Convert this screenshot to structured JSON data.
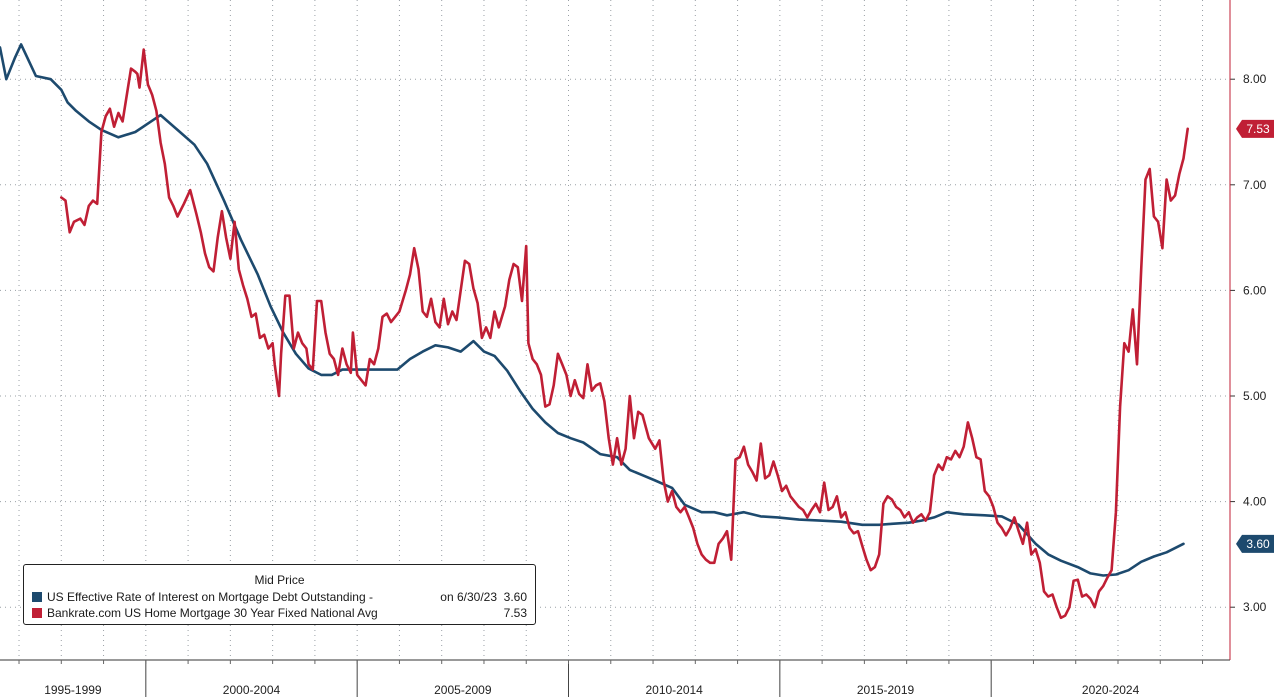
{
  "colors": {
    "effective": "#1d4a6e",
    "bankrate": "#c01f35",
    "grid": "#9aa0a6",
    "axis": "#333333"
  },
  "legend": {
    "title": "Mid Price",
    "items": [
      {
        "label": "US Effective Rate of Interest on Mortgage Debt Outstanding -",
        "date": "on 6/30/23",
        "value": "3.60"
      },
      {
        "label": "Bankrate.com US Home Mortgage 30 Year Fixed National Avg",
        "date": "",
        "value": "7.53"
      }
    ]
  },
  "chart_data": {
    "type": "line",
    "xlim": [
      1995.0,
      2024.1
    ],
    "ylim": [
      2.5,
      8.75
    ],
    "yticks": [
      "3.00",
      "4.00",
      "5.00",
      "6.00",
      "7.00",
      "8.00"
    ],
    "x_periods": [
      {
        "label": "1995-1999",
        "start": 1995.0,
        "end": 1998.45
      },
      {
        "label": "2000-2004",
        "start": 1998.45,
        "end": 2003.45
      },
      {
        "label": "2005-2009",
        "start": 2003.45,
        "end": 2008.45
      },
      {
        "label": "2010-2014",
        "start": 2008.45,
        "end": 2013.45
      },
      {
        "label": "2015-2019",
        "start": 2013.45,
        "end": 2018.45
      },
      {
        "label": "2020-2024",
        "start": 2018.45,
        "end": 2024.1
      }
    ],
    "last_value_labels": [
      {
        "series": "effective",
        "text": "3.60"
      },
      {
        "series": "bankrate",
        "text": "7.53"
      }
    ],
    "series": [
      {
        "key": "effective",
        "name": "US Effective Rate of Interest on Mortgage Debt Outstanding",
        "x": [
          1995.0,
          1995.15,
          1995.35,
          1995.5,
          1995.65,
          1995.85,
          1996.2,
          1996.45,
          1996.6,
          1996.8,
          1997.1,
          1997.4,
          1997.8,
          1998.2,
          1998.5,
          1998.8,
          1999.2,
          1999.6,
          1999.9,
          2000.3,
          2000.7,
          2001.1,
          2001.4,
          2001.7,
          2002.0,
          2002.3,
          2002.6,
          2002.85,
          2003.1,
          2003.5,
          2003.9,
          2004.4,
          2004.7,
          2005.0,
          2005.3,
          2005.6,
          2005.9,
          2006.2,
          2006.45,
          2006.7,
          2007.0,
          2007.3,
          2007.6,
          2007.9,
          2008.2,
          2008.5,
          2008.8,
          2009.2,
          2009.6,
          2009.9,
          2010.2,
          2010.5,
          2010.9,
          2011.2,
          2011.6,
          2011.9,
          2012.2,
          2012.6,
          2013.0,
          2013.4,
          2013.9,
          2014.4,
          2014.9,
          2015.4,
          2015.8,
          2016.1,
          2016.5,
          2016.8,
          2017.1,
          2017.4,
          2017.8,
          2018.3,
          2018.7,
          2019.1,
          2019.5,
          2019.8,
          2020.1,
          2020.5,
          2020.8,
          2021.1,
          2021.4,
          2021.7,
          2022.0,
          2022.3,
          2022.6,
          2023.0
        ],
        "y": [
          8.3,
          8.0,
          8.2,
          8.33,
          8.2,
          8.03,
          8.0,
          7.9,
          7.78,
          7.7,
          7.6,
          7.52,
          7.45,
          7.5,
          7.58,
          7.66,
          7.52,
          7.38,
          7.2,
          6.85,
          6.48,
          6.15,
          5.85,
          5.6,
          5.4,
          5.26,
          5.2,
          5.2,
          5.25,
          5.25,
          5.25,
          5.25,
          5.35,
          5.42,
          5.48,
          5.46,
          5.42,
          5.52,
          5.42,
          5.38,
          5.24,
          5.05,
          4.88,
          4.75,
          4.65,
          4.6,
          4.56,
          4.45,
          4.42,
          4.3,
          4.25,
          4.2,
          4.13,
          3.97,
          3.9,
          3.9,
          3.87,
          3.9,
          3.86,
          3.85,
          3.83,
          3.82,
          3.81,
          3.78,
          3.78,
          3.79,
          3.8,
          3.82,
          3.85,
          3.9,
          3.88,
          3.87,
          3.86,
          3.78,
          3.6,
          3.5,
          3.44,
          3.38,
          3.32,
          3.3,
          3.31,
          3.35,
          3.43,
          3.48,
          3.52,
          3.6
        ]
      },
      {
        "key": "bankrate",
        "name": "Bankrate.com US Home Mortgage 30 Year Fixed National Avg",
        "x": [
          1996.45,
          1996.55,
          1996.65,
          1996.75,
          1996.9,
          1997.0,
          1997.1,
          1997.2,
          1997.3,
          1997.4,
          1997.5,
          1997.6,
          1997.7,
          1997.8,
          1997.9,
          1998.0,
          1998.1,
          1998.2,
          1998.25,
          1998.3,
          1998.4,
          1998.5,
          1998.55,
          1998.6,
          1998.7,
          1998.8,
          1998.9,
          1999.0,
          1999.1,
          1999.2,
          1999.35,
          1999.5,
          1999.65,
          1999.75,
          1999.85,
          1999.95,
          2000.05,
          2000.15,
          2000.25,
          2000.35,
          2000.45,
          2000.55,
          2000.65,
          2000.75,
          2000.85,
          2000.95,
          2001.05,
          2001.15,
          2001.25,
          2001.35,
          2001.45,
          2001.5,
          2001.6,
          2001.65,
          2001.75,
          2001.85,
          2001.95,
          2002.05,
          2002.15,
          2002.25,
          2002.3,
          2002.4,
          2002.5,
          2002.6,
          2002.7,
          2002.8,
          2002.9,
          2003.0,
          2003.1,
          2003.2,
          2003.3,
          2003.35,
          2003.45,
          2003.55,
          2003.65,
          2003.75,
          2003.85,
          2003.95,
          2004.05,
          2004.15,
          2004.25,
          2004.35,
          2004.45,
          2004.6,
          2004.7,
          2004.8,
          2004.9,
          2005.0,
          2005.1,
          2005.2,
          2005.3,
          2005.4,
          2005.5,
          2005.6,
          2005.7,
          2005.8,
          2005.9,
          2006.0,
          2006.1,
          2006.2,
          2006.3,
          2006.4,
          2006.5,
          2006.6,
          2006.7,
          2006.8,
          2006.95,
          2007.05,
          2007.15,
          2007.25,
          2007.35,
          2007.45,
          2007.5,
          2007.6,
          2007.7,
          2007.8,
          2007.9,
          2008.0,
          2008.1,
          2008.2,
          2008.3,
          2008.4,
          2008.5,
          2008.6,
          2008.7,
          2008.8,
          2008.9,
          2009.0,
          2009.1,
          2009.2,
          2009.3,
          2009.4,
          2009.5,
          2009.6,
          2009.7,
          2009.8,
          2009.9,
          2010.0,
          2010.1,
          2010.2,
          2010.35,
          2010.5,
          2010.6,
          2010.7,
          2010.8,
          2010.9,
          2011.0,
          2011.1,
          2011.2,
          2011.3,
          2011.4,
          2011.5,
          2011.6,
          2011.7,
          2011.8,
          2011.9,
          2012.0,
          2012.1,
          2012.2,
          2012.3,
          2012.4,
          2012.5,
          2012.6,
          2012.7,
          2012.8,
          2012.9,
          2013.0,
          2013.1,
          2013.2,
          2013.3,
          2013.4,
          2013.5,
          2013.6,
          2013.7,
          2013.8,
          2013.9,
          2014.0,
          2014.1,
          2014.2,
          2014.3,
          2014.4,
          2014.5,
          2014.6,
          2014.7,
          2014.8,
          2014.9,
          2015.0,
          2015.1,
          2015.2,
          2015.3,
          2015.4,
          2015.5,
          2015.6,
          2015.7,
          2015.8,
          2015.9,
          2016.0,
          2016.1,
          2016.2,
          2016.3,
          2016.4,
          2016.5,
          2016.6,
          2016.7,
          2016.8,
          2016.9,
          2017.0,
          2017.1,
          2017.2,
          2017.3,
          2017.4,
          2017.5,
          2017.6,
          2017.7,
          2017.8,
          2017.9,
          2018.0,
          2018.1,
          2018.2,
          2018.3,
          2018.4,
          2018.5,
          2018.6,
          2018.7,
          2018.8,
          2018.9,
          2019.0,
          2019.1,
          2019.2,
          2019.3,
          2019.4,
          2019.5,
          2019.6,
          2019.7,
          2019.8,
          2019.9,
          2020.0,
          2020.1,
          2020.2,
          2020.3,
          2020.4,
          2020.5,
          2020.6,
          2020.7,
          2020.8,
          2020.9,
          2021.0,
          2021.1,
          2021.2,
          2021.3,
          2021.4,
          2021.5,
          2021.6,
          2021.7,
          2021.8,
          2021.9,
          2022.0,
          2022.1,
          2022.2,
          2022.3,
          2022.4,
          2022.5,
          2022.6,
          2022.7,
          2022.8,
          2022.9,
          2023.0,
          2023.1
        ],
        "y": [
          6.88,
          6.85,
          6.55,
          6.65,
          6.68,
          6.62,
          6.8,
          6.85,
          6.82,
          7.5,
          7.65,
          7.72,
          7.55,
          7.68,
          7.6,
          7.85,
          8.1,
          8.07,
          8.05,
          7.92,
          8.28,
          7.95,
          7.9,
          7.85,
          7.7,
          7.4,
          7.2,
          6.88,
          6.8,
          6.7,
          6.82,
          6.95,
          6.72,
          6.55,
          6.35,
          6.22,
          6.18,
          6.5,
          6.75,
          6.5,
          6.3,
          6.65,
          6.2,
          6.05,
          5.92,
          5.75,
          5.78,
          5.55,
          5.58,
          5.45,
          5.5,
          5.3,
          5.0,
          5.4,
          5.95,
          5.95,
          5.45,
          5.6,
          5.5,
          5.45,
          5.3,
          5.25,
          5.9,
          5.9,
          5.6,
          5.4,
          5.35,
          5.2,
          5.45,
          5.3,
          5.22,
          5.6,
          5.2,
          5.15,
          5.1,
          5.35,
          5.3,
          5.45,
          5.75,
          5.78,
          5.7,
          5.75,
          5.8,
          6.0,
          6.15,
          6.4,
          6.2,
          5.8,
          5.75,
          5.92,
          5.7,
          5.65,
          5.92,
          5.68,
          5.8,
          5.72,
          6.0,
          6.28,
          6.25,
          6.02,
          5.88,
          5.55,
          5.65,
          5.55,
          5.8,
          5.65,
          5.85,
          6.1,
          6.25,
          6.22,
          5.9,
          6.42,
          5.5,
          5.35,
          5.3,
          5.2,
          4.9,
          4.92,
          5.1,
          5.4,
          5.3,
          5.2,
          5.0,
          5.15,
          5.02,
          4.98,
          5.3,
          5.05,
          5.1,
          5.12,
          4.95,
          4.6,
          4.35,
          4.6,
          4.35,
          4.5,
          5.0,
          4.6,
          4.85,
          4.82,
          4.6,
          4.5,
          4.58,
          4.2,
          4.0,
          4.1,
          3.95,
          3.9,
          3.95,
          3.85,
          3.75,
          3.6,
          3.5,
          3.45,
          3.42,
          3.42,
          3.6,
          3.65,
          3.72,
          3.45,
          4.4,
          4.42,
          4.52,
          4.35,
          4.28,
          4.2,
          4.55,
          4.22,
          4.25,
          4.38,
          4.25,
          4.1,
          4.15,
          4.05,
          4.0,
          3.95,
          3.92,
          3.85,
          3.92,
          3.98,
          3.9,
          4.18,
          3.92,
          3.95,
          4.05,
          3.85,
          3.9,
          3.75,
          3.7,
          3.72,
          3.58,
          3.45,
          3.35,
          3.38,
          3.5,
          3.98,
          4.05,
          4.02,
          3.95,
          3.92,
          3.85,
          3.9,
          3.8,
          3.85,
          3.88,
          3.82,
          3.9,
          4.25,
          4.35,
          4.3,
          4.42,
          4.4,
          4.48,
          4.42,
          4.52,
          4.75,
          4.6,
          4.42,
          4.4,
          4.1,
          4.05,
          3.95,
          3.8,
          3.75,
          3.68,
          3.75,
          3.85,
          3.72,
          3.6,
          3.8,
          3.5,
          3.55,
          3.42,
          3.15,
          3.1,
          3.12,
          3.0,
          2.9,
          2.92,
          3.0,
          3.25,
          3.26,
          3.1,
          3.12,
          3.08,
          3.0,
          3.15,
          3.2,
          3.28,
          3.35,
          3.9,
          4.9,
          5.5,
          5.42,
          5.82,
          5.3,
          6.2,
          7.05,
          7.15,
          6.7,
          6.65,
          6.4,
          7.05,
          6.85,
          6.9,
          7.1,
          7.25,
          7.53
        ]
      }
    ]
  }
}
